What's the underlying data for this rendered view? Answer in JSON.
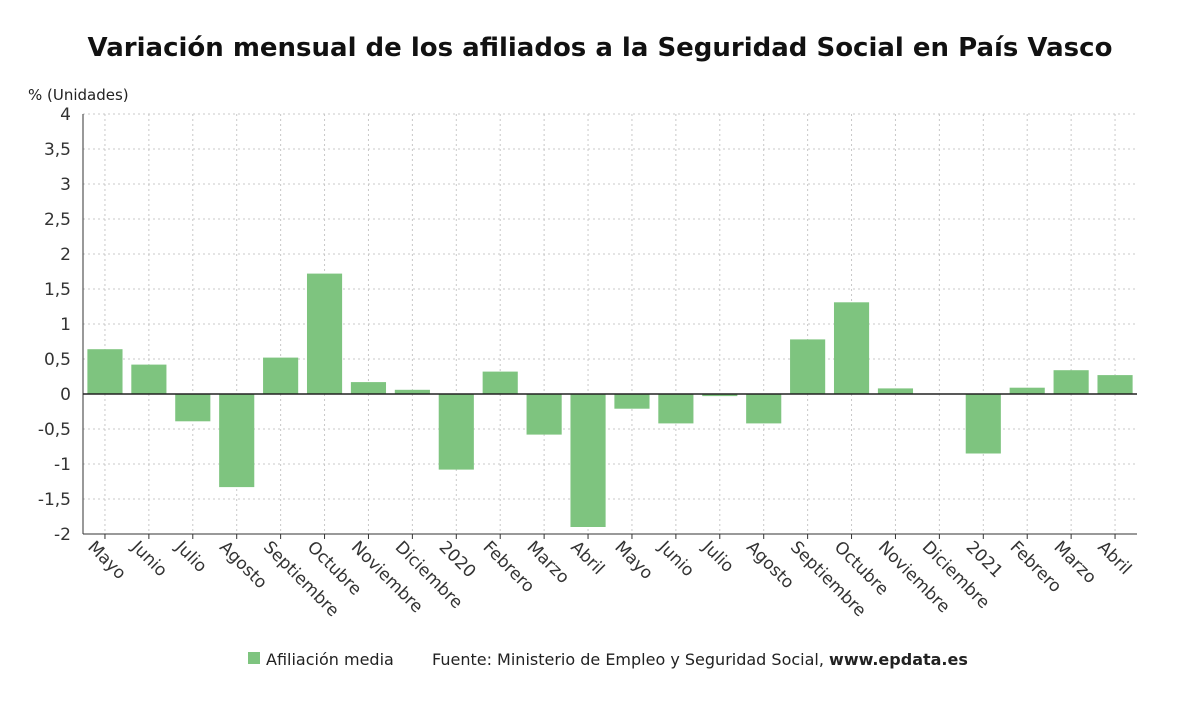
{
  "chart_data": {
    "type": "bar",
    "title": "Variación mensual de los afiliados a la Seguridad Social en País Vasco",
    "ylabel": "% (Unidades)",
    "xlabel": "",
    "ylim": [
      -2,
      4
    ],
    "ytick_step": 0.5,
    "grid": true,
    "legend_position": "bottom",
    "bar_color": "#7ec47f",
    "categories": [
      "Mayo",
      "Junio",
      "Julio",
      "Agosto",
      "Septiembre",
      "Octubre",
      "Noviembre",
      "Diciembre",
      "2020",
      "Febrero",
      "Marzo",
      "Abril",
      "Mayo",
      "Junio",
      "Julio",
      "Agosto",
      "Septiembre",
      "Octubre",
      "Noviembre",
      "Diciembre",
      "2021",
      "Febrero",
      "Marzo",
      "Abril"
    ],
    "series": [
      {
        "name": "Afiliación media",
        "values": [
          0.64,
          0.42,
          -0.39,
          -1.33,
          0.52,
          1.72,
          0.17,
          0.06,
          -1.08,
          0.32,
          -0.58,
          -1.9,
          -0.21,
          -0.42,
          -0.03,
          -0.42,
          0.78,
          1.31,
          0.08,
          0,
          -0.85,
          0.09,
          0.34,
          0.27
        ]
      }
    ]
  },
  "footer": {
    "source_prefix": "Fuente: Ministerio de Empleo y Seguridad Social, ",
    "source_site": "www.epdata.es"
  }
}
